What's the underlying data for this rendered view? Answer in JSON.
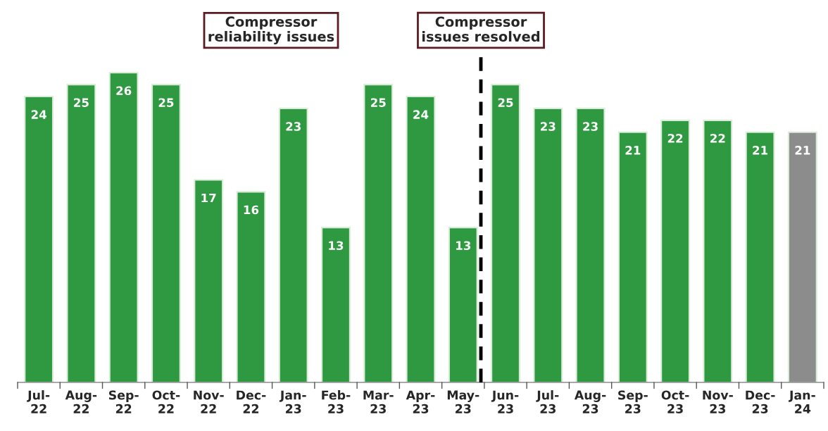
{
  "chart_data": {
    "type": "bar",
    "categories": [
      "Jul-\n22",
      "Aug-\n22",
      "Sep-\n22",
      "Oct-\n22",
      "Nov-\n22",
      "Dec-\n22",
      "Jan-\n23",
      "Feb-\n23",
      "Mar-\n23",
      "Apr-\n23",
      "May-\n23",
      "Jun-\n23",
      "Jul-\n23",
      "Aug-\n23",
      "Sep-\n23",
      "Oct-\n23",
      "Nov-\n23",
      "Dec-\n23",
      "Jan-\n24"
    ],
    "values": [
      24,
      25,
      26,
      25,
      17,
      16,
      23,
      13,
      25,
      24,
      13,
      25,
      23,
      23,
      21,
      22,
      22,
      21,
      21
    ],
    "colors": [
      "#2e9940",
      "#2e9940",
      "#2e9940",
      "#2e9940",
      "#2e9940",
      "#2e9940",
      "#2e9940",
      "#2e9940",
      "#2e9940",
      "#2e9940",
      "#2e9940",
      "#2e9940",
      "#2e9940",
      "#2e9940",
      "#2e9940",
      "#2e9940",
      "#2e9940",
      "#2e9940",
      "#8c8c8c"
    ],
    "data_labels": true,
    "tick_labels": "x",
    "grid": false,
    "annotations": [
      "Compressor\nreliability issues",
      "Compressor\nissues resolved"
    ]
  }
}
